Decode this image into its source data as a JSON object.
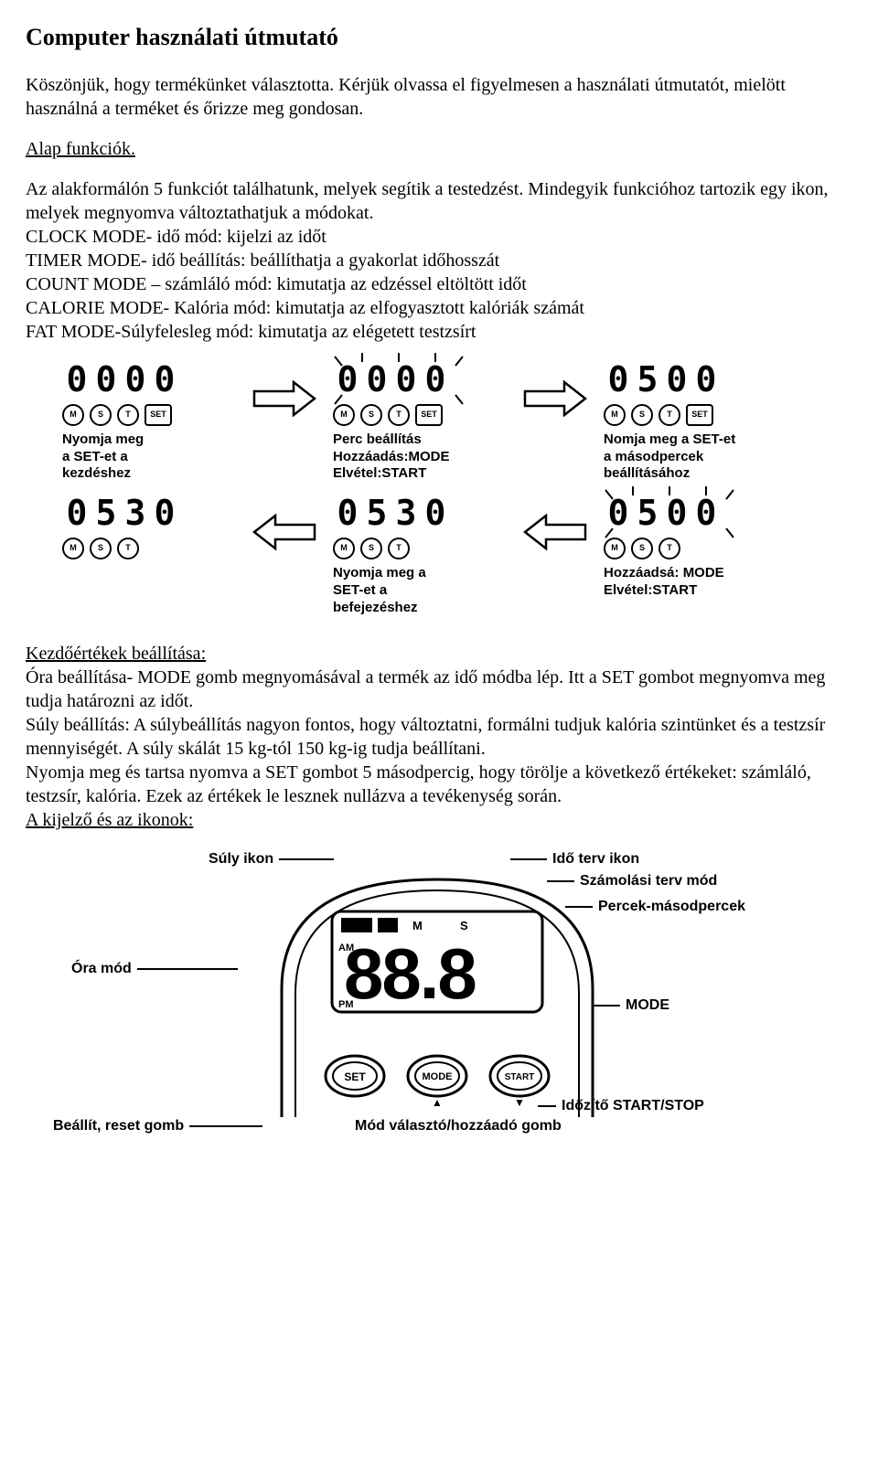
{
  "title": "Computer használati útmutató",
  "intro": "Köszönjük, hogy termékünket választotta. Kérjük olvassa el figyelmesen a használati útmutatót, mielött használná a terméket és őrizze meg gondosan.",
  "section_basic": "Alap funkciók.",
  "basic_text": "Az alakformálón 5 funkciót találhatunk, melyek segítik a testedzést. Mindegyik funkcióhoz tartozik egy ikon, melyek megnyomva változtathatjuk a módokat.",
  "modes": [
    "CLOCK MODE- idő mód: kijelzi az időt",
    "TIMER MODE- idő beállítás: beállíthatja a gyakorlat időhosszát",
    "COUNT MODE – számláló mód: kimutatja az edzéssel eltöltött időt",
    "CALORIE MODE- Kalória mód: kimutatja az elfogyasztott kalóriák számát",
    "FAT MODE-Súlyfelesleg mód: kimutatja az elégetett testzsírt"
  ],
  "flow": {
    "panels_top": [
      {
        "digits": "0000",
        "caption": "Nyomja meg\na SET-et a\nkezdéshez",
        "flash": false,
        "icons": [
          "M",
          "S",
          "T",
          "SET"
        ]
      },
      {
        "digits": "0000",
        "caption": "Perc beállítás\nHozzáadás:MODE\nElvétel:START",
        "flash": true,
        "icons": [
          "M",
          "S",
          "T",
          "SET"
        ]
      },
      {
        "digits": "0500",
        "caption": "Nomja meg a SET-et\na másodpercek\nbeállításához",
        "flash": false,
        "icons": [
          "M",
          "S",
          "T",
          "SET"
        ]
      }
    ],
    "panels_bottom": [
      {
        "digits": "0530",
        "caption": "",
        "flash": false,
        "icons": [
          "M",
          "S",
          "T"
        ]
      },
      {
        "digits": "0530",
        "caption": "Nyomja meg a\nSET-et a\nbefejezéshez",
        "flash": false,
        "icons": [
          "M",
          "S",
          "T"
        ]
      },
      {
        "digits": "0500",
        "caption": "Hozzáadsá: MODE\nElvétel:START",
        "flash": true,
        "icons": [
          "M",
          "S",
          "T"
        ]
      }
    ]
  },
  "section_init": "Kezdőértékek beállítása:",
  "init_text": [
    "Óra beállítása- MODE gomb megnyomásával a termék az idő módba lép. Itt a SET gombot megnyomva meg tudja határozni az időt.",
    "Súly beállítás: A súlybeállítás nagyon fontos, hogy változtatni, formálni tudjuk kalória szintünket és a testzsír mennyiségét.  A súly skálát 15 kg-tól 150 kg-ig tudja beállítani.",
    "Nyomja meg és tartsa nyomva a SET gombot 5 másodpercig, hogy törölje a következő értékeket: számláló, testzsír, kalória. Ezek az értékek le lesznek nullázva a tevékenység során."
  ],
  "section_icons": "A kijelző és az ikonok:",
  "console": {
    "labels": {
      "weight_icon": "Súly ikon",
      "time_plan_icon": "Idő terv ikon",
      "count_plan_mode": "Számolási terv mód",
      "min_sec": "Percek-másodpercek",
      "clock_mode": "Óra mód",
      "mode": "MODE",
      "timer_startstop": "Időzítő START/STOP",
      "set_reset": "Beállít, reset gomb",
      "mode_selector": "Mód választó/hozzáadó gomb"
    },
    "display_digits": "88.8",
    "buttons": [
      "SET",
      "MODE",
      "START"
    ],
    "colors": {
      "text": "#000000",
      "bg": "#ffffff",
      "line": "#000000"
    }
  }
}
